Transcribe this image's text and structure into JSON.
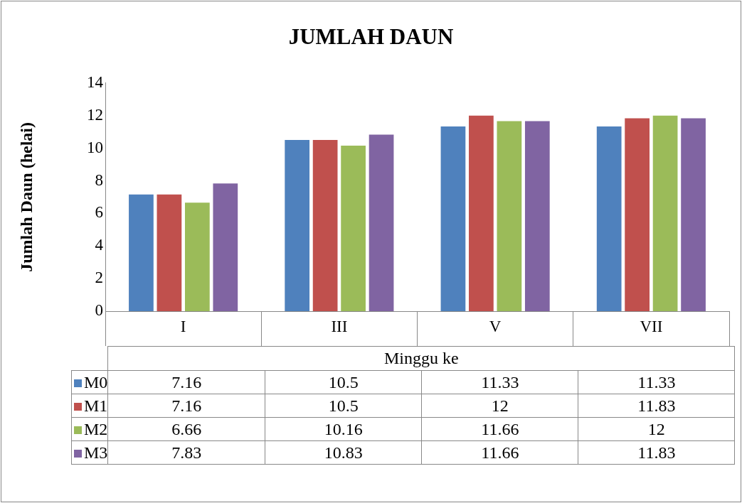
{
  "chart_data": {
    "type": "bar",
    "title": "JUMLAH DAUN",
    "xlabel": "Minggu ke",
    "ylabel": "Jumlah Daun (helai)",
    "categories": [
      "I",
      "III",
      "V",
      "VII"
    ],
    "series": [
      {
        "name": "M0",
        "color": "#4f81bd",
        "values": [
          7.16,
          10.5,
          11.33,
          11.33
        ]
      },
      {
        "name": "M1",
        "color": "#c0504d",
        "values": [
          7.16,
          10.5,
          12,
          11.83
        ]
      },
      {
        "name": "M2",
        "color": "#9bbb59",
        "values": [
          6.66,
          10.16,
          11.66,
          12
        ]
      },
      {
        "name": "M3",
        "color": "#8064a2",
        "values": [
          7.83,
          10.83,
          11.66,
          11.83
        ]
      }
    ],
    "ylim": [
      0,
      14
    ],
    "yticks": [
      0,
      2,
      4,
      6,
      8,
      10,
      12,
      14
    ],
    "grid": false,
    "legend": "bottom",
    "data_labels": true
  }
}
